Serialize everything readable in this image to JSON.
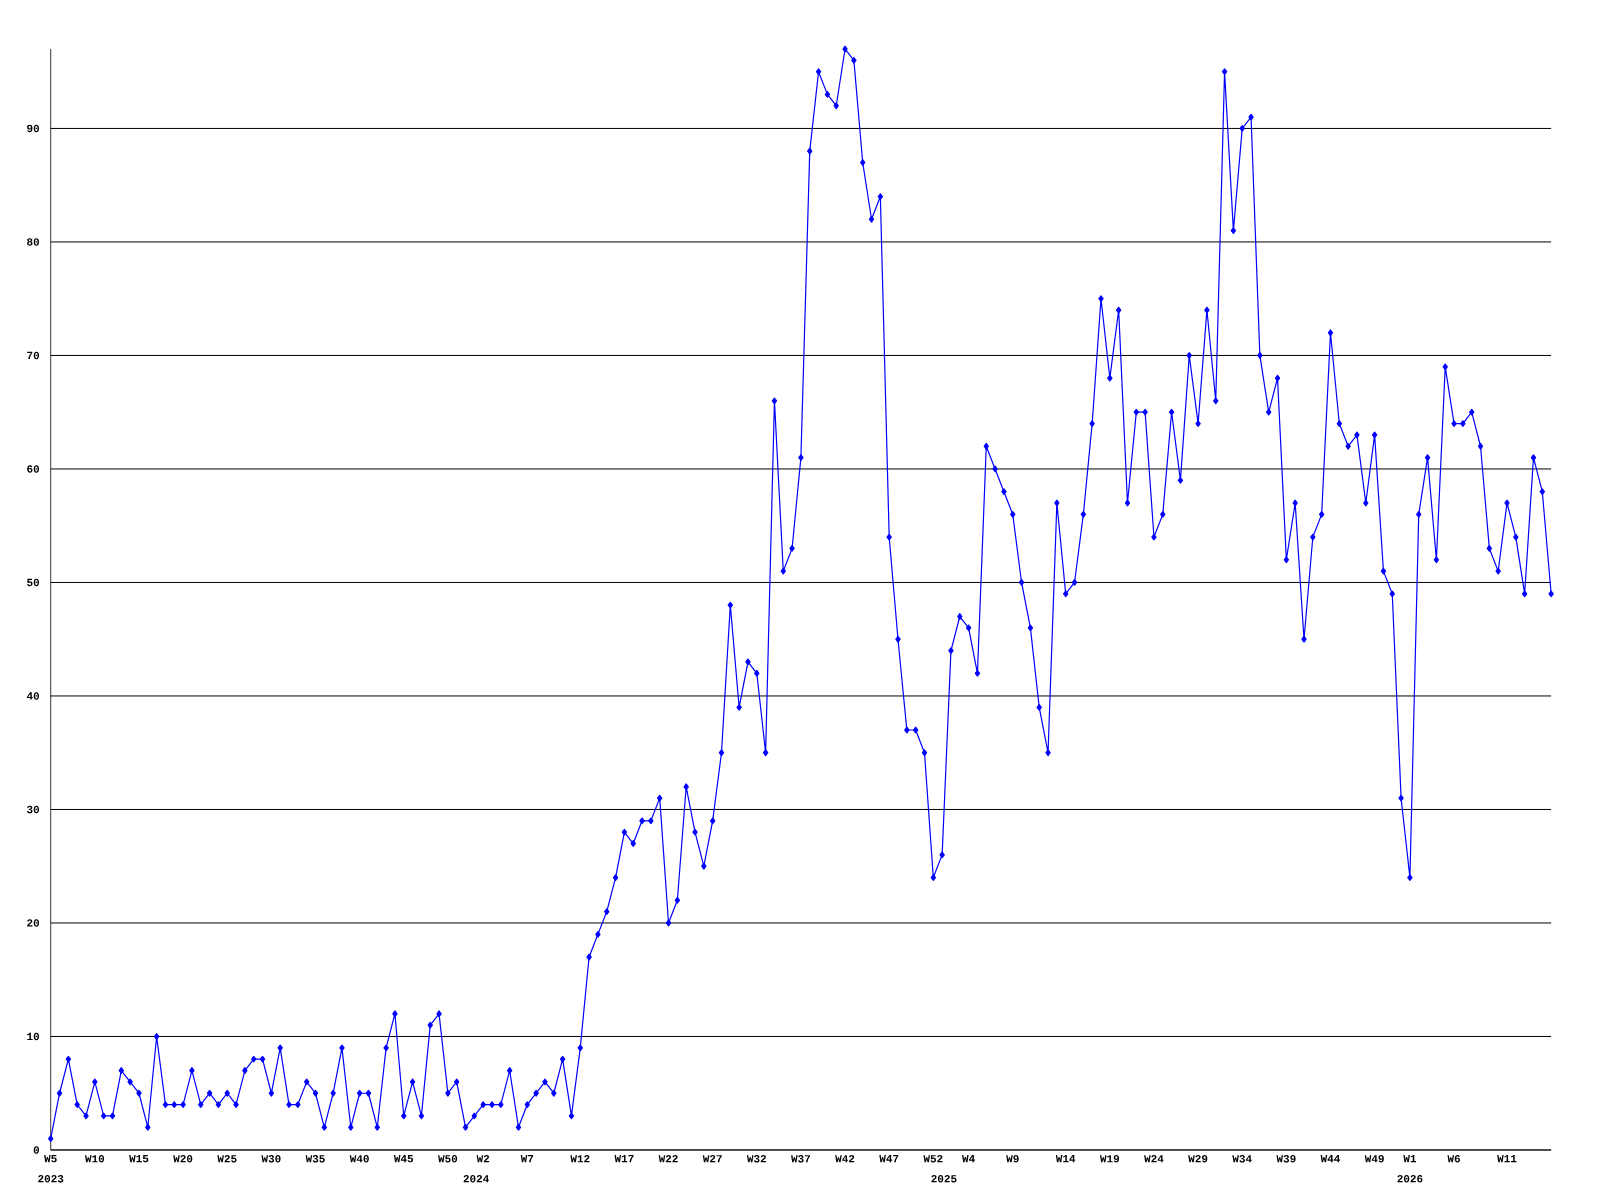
{
  "chart_data": {
    "type": "line",
    "categories": [
      "W5",
      null,
      null,
      null,
      null,
      "W10",
      null,
      null,
      null,
      null,
      "W15",
      null,
      null,
      null,
      null,
      "W20",
      null,
      null,
      null,
      null,
      "W25",
      null,
      null,
      null,
      null,
      "W30",
      null,
      null,
      null,
      null,
      "W35",
      null,
      null,
      null,
      null,
      "W40",
      null,
      null,
      null,
      null,
      "W45",
      null,
      null,
      null,
      null,
      "W50",
      null,
      null,
      null,
      "W2",
      null,
      null,
      null,
      null,
      "W7",
      null,
      null,
      null,
      null,
      null,
      "W12",
      null,
      null,
      null,
      null,
      "W17",
      null,
      null,
      null,
      null,
      "W22",
      null,
      null,
      null,
      null,
      "W27",
      null,
      null,
      null,
      null,
      "W32",
      null,
      null,
      null,
      null,
      "W37",
      null,
      null,
      null,
      null,
      "W42",
      null,
      null,
      null,
      null,
      "W47",
      null,
      null,
      null,
      null,
      "W52",
      null,
      null,
      null,
      "W4",
      null,
      null,
      null,
      null,
      "W9",
      null,
      null,
      null,
      null,
      null,
      "W14",
      null,
      null,
      null,
      null,
      "W19",
      null,
      null,
      null,
      null,
      "W24",
      null,
      null,
      null,
      null,
      "W29",
      null,
      null,
      null,
      null,
      "W34",
      null,
      null,
      null,
      null,
      "W39",
      null,
      null,
      null,
      null,
      "W44",
      null,
      null,
      null,
      null,
      "W49",
      null,
      null,
      null,
      "W1",
      null,
      null,
      null,
      null,
      "W6",
      null,
      null,
      null,
      null,
      null,
      "W11",
      null,
      null,
      null,
      null,
      null
    ],
    "series": [
      {
        "color": "#0000ff",
        "values": [
          1,
          5,
          8,
          4,
          3,
          6,
          3,
          3,
          7,
          6,
          5,
          2,
          10,
          4,
          4,
          4,
          7,
          4,
          5,
          4,
          5,
          4,
          7,
          8,
          8,
          5,
          9,
          4,
          4,
          6,
          5,
          2,
          5,
          9,
          2,
          5,
          5,
          2,
          9,
          12,
          3,
          6,
          3,
          11,
          12,
          5,
          6,
          2,
          3,
          4,
          4,
          4,
          7,
          2,
          4,
          5,
          6,
          5,
          8,
          3,
          9,
          17,
          19,
          21,
          24,
          28,
          27,
          29,
          29,
          31,
          20,
          22,
          32,
          28,
          25,
          29,
          35,
          48,
          39,
          43,
          42,
          35,
          66,
          51,
          53,
          61,
          88,
          95,
          93,
          92,
          97,
          96,
          87,
          82,
          84,
          54,
          45,
          37,
          37,
          35,
          24,
          26,
          44,
          47,
          46,
          42,
          62,
          60,
          58,
          56,
          50,
          46,
          39,
          35,
          57,
          49,
          50,
          56,
          64,
          75,
          68,
          74,
          57,
          65,
          65,
          54,
          56,
          65,
          59,
          70,
          64,
          74,
          66,
          95,
          81,
          90,
          91,
          70,
          65,
          68,
          52,
          57,
          45,
          54,
          56,
          72,
          64,
          62,
          63,
          57,
          63,
          51,
          49,
          31,
          24,
          56,
          61,
          52,
          69,
          64,
          64,
          65,
          62,
          53,
          51,
          57,
          54,
          49,
          61,
          58,
          49
        ]
      }
    ],
    "ylim": [
      0,
      97
    ],
    "yticks": [
      0,
      10,
      20,
      30,
      40,
      50,
      60,
      70,
      80,
      90
    ],
    "grid": "y",
    "marker": "diamond",
    "line_style": "solid",
    "annotations": [
      "2023",
      "2024",
      "2025",
      "2026"
    ]
  }
}
